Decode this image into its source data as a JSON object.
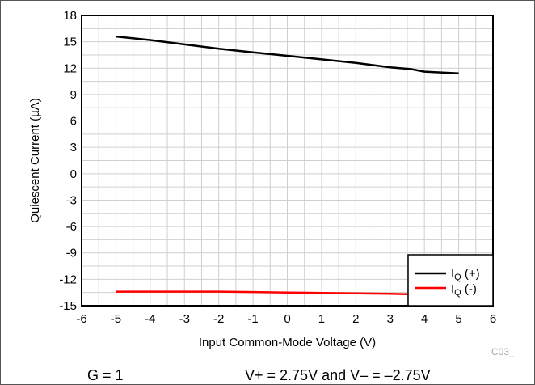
{
  "chart_data": {
    "type": "line",
    "xlabel": "Input Common-Mode Voltage (V)",
    "ylabel": "Quiescent Current (µA)",
    "xlim": [
      -6,
      6
    ],
    "ylim": [
      -15,
      18
    ],
    "xticks": [
      -6,
      -5,
      -4,
      -3,
      -2,
      -1,
      0,
      1,
      2,
      3,
      4,
      5,
      6
    ],
    "yticks": [
      -15,
      -12,
      -9,
      -6,
      -3,
      0,
      3,
      6,
      9,
      12,
      15,
      18
    ],
    "grid": true,
    "legend_position": "bottom-right",
    "series": [
      {
        "name_main": "I",
        "name_sub": "Q",
        "name_suffix": " (+)",
        "color": "#000000",
        "x": [
          -5,
          -4,
          -3,
          -2,
          -1,
          0,
          1,
          2,
          3,
          3.6,
          4,
          5
        ],
        "y": [
          15.6,
          15.2,
          14.7,
          14.2,
          13.8,
          13.4,
          13.0,
          12.6,
          12.1,
          11.9,
          11.6,
          11.4
        ]
      },
      {
        "name_main": "I",
        "name_sub": "Q",
        "name_suffix": " (-)",
        "color": "#ff0000",
        "x": [
          -5,
          -4,
          -3,
          -2,
          -1,
          0,
          1,
          2,
          3,
          3.6
        ],
        "y": [
          -13.4,
          -13.4,
          -13.4,
          -13.4,
          -13.45,
          -13.5,
          -13.55,
          -13.6,
          -13.65,
          -13.7
        ]
      }
    ]
  },
  "footer": {
    "gain": "G = 1",
    "supply": "V+ = 2.75V and V– = –2.75V",
    "code": "C03_"
  }
}
